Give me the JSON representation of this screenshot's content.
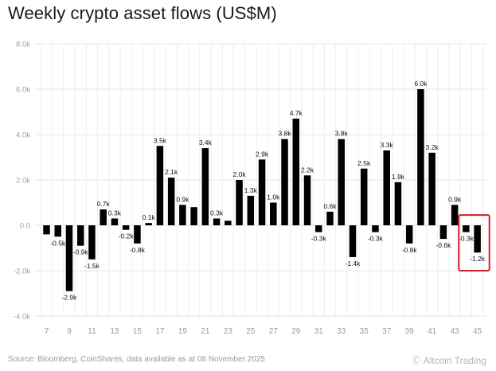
{
  "header": {
    "title": "Weekly crypto asset flows (US$M)"
  },
  "footer": {
    "source": "Source: Bloomberg, CoinShares, data available as at 08 November 2025",
    "watermark": "Ⓒ Altcoin Trading"
  },
  "chart_data": {
    "type": "bar",
    "title": "Weekly crypto asset flows (US$M)",
    "xlabel": "",
    "ylabel": "",
    "ylim": [
      -4.0,
      8.0
    ],
    "yticks": [
      -4.0,
      -2.0,
      0.0,
      2.0,
      4.0,
      6.0,
      8.0
    ],
    "ytick_labels": [
      "-4.0k",
      "-2.0k",
      "0.0",
      "2.0k",
      "4.0k",
      "6.0k",
      "8.0k"
    ],
    "xtick_labels": [
      "7",
      "9",
      "11",
      "13",
      "15",
      "17",
      "19",
      "21",
      "23",
      "25",
      "27",
      "29",
      "31",
      "33",
      "35",
      "37",
      "39",
      "41",
      "43",
      "45"
    ],
    "categories": [
      7,
      8,
      9,
      10,
      11,
      12,
      13,
      14,
      15,
      16,
      17,
      18,
      19,
      20,
      21,
      22,
      23,
      24,
      25,
      26,
      27,
      28,
      29,
      30,
      31,
      32,
      33,
      34,
      35,
      36,
      37,
      38,
      39,
      40,
      41,
      42,
      43,
      44,
      45
    ],
    "values": [
      -0.4,
      -0.5,
      -2.9,
      -0.9,
      -1.5,
      0.7,
      0.3,
      -0.2,
      -0.8,
      0.1,
      3.5,
      2.1,
      0.9,
      0.8,
      3.4,
      0.3,
      0.2,
      2.0,
      1.3,
      2.9,
      1.0,
      3.8,
      4.7,
      2.2,
      -0.3,
      0.6,
      3.8,
      -1.4,
      2.5,
      -0.3,
      3.3,
      1.9,
      -0.8,
      6.0,
      3.2,
      -0.6,
      0.9,
      -0.3,
      -1.2
    ],
    "data_labels": [
      "",
      "-0.5k",
      "-2.9k",
      "-0.9k",
      "-1.5k",
      "0.7k",
      "0.3k",
      "-0.2k",
      "-0.8k",
      "0.1k",
      "3.5k",
      "2.1k",
      "0.9k",
      "",
      "3.4k",
      "0.3k",
      "",
      "2.0k",
      "1.3k",
      "2.9k",
      "1.0k",
      "3.8k",
      "4.7k",
      "2.2k",
      "-0.3k",
      "0.6k",
      "3.8k",
      "-1.4k",
      "2.5k",
      "-0.3k",
      "3.3k",
      "1.9k",
      "-0.8k",
      "6.0k",
      "3.2k",
      "-0.6k",
      "0.9k",
      "-0.3k",
      "-1.2k"
    ],
    "units": "US$M (thousands)",
    "bar_color": "#000000",
    "grid": true,
    "highlight": {
      "category": 45,
      "color": "#d0202a"
    }
  }
}
